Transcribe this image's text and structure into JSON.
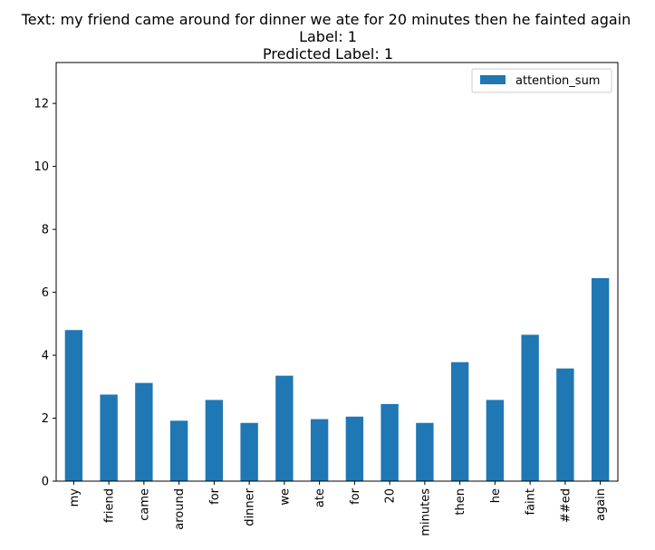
{
  "chart_data": {
    "type": "bar",
    "title_lines": [
      "Text: my friend came around for dinner we ate for 20 minutes then he fainted again",
      "Label: 1",
      "Predicted Label: 1"
    ],
    "xlabel": "",
    "ylabel": "",
    "categories": [
      "my",
      "friend",
      "came",
      "around",
      "for",
      "dinner",
      "we",
      "ate",
      "for",
      "20",
      "minutes",
      "then",
      "he",
      "faint",
      "##ed",
      "again"
    ],
    "series": [
      {
        "name": "attention_sum",
        "color": "#1f77b4",
        "values": [
          4.8,
          2.75,
          3.12,
          1.92,
          2.58,
          1.85,
          3.35,
          1.97,
          2.05,
          2.45,
          1.85,
          3.78,
          2.58,
          4.65,
          3.58,
          6.45
        ]
      }
    ],
    "ylim": [
      0,
      13.3
    ],
    "yticks": [
      0,
      2,
      4,
      6,
      8,
      10,
      12
    ],
    "legend_position": "upper right",
    "grid": false
  }
}
